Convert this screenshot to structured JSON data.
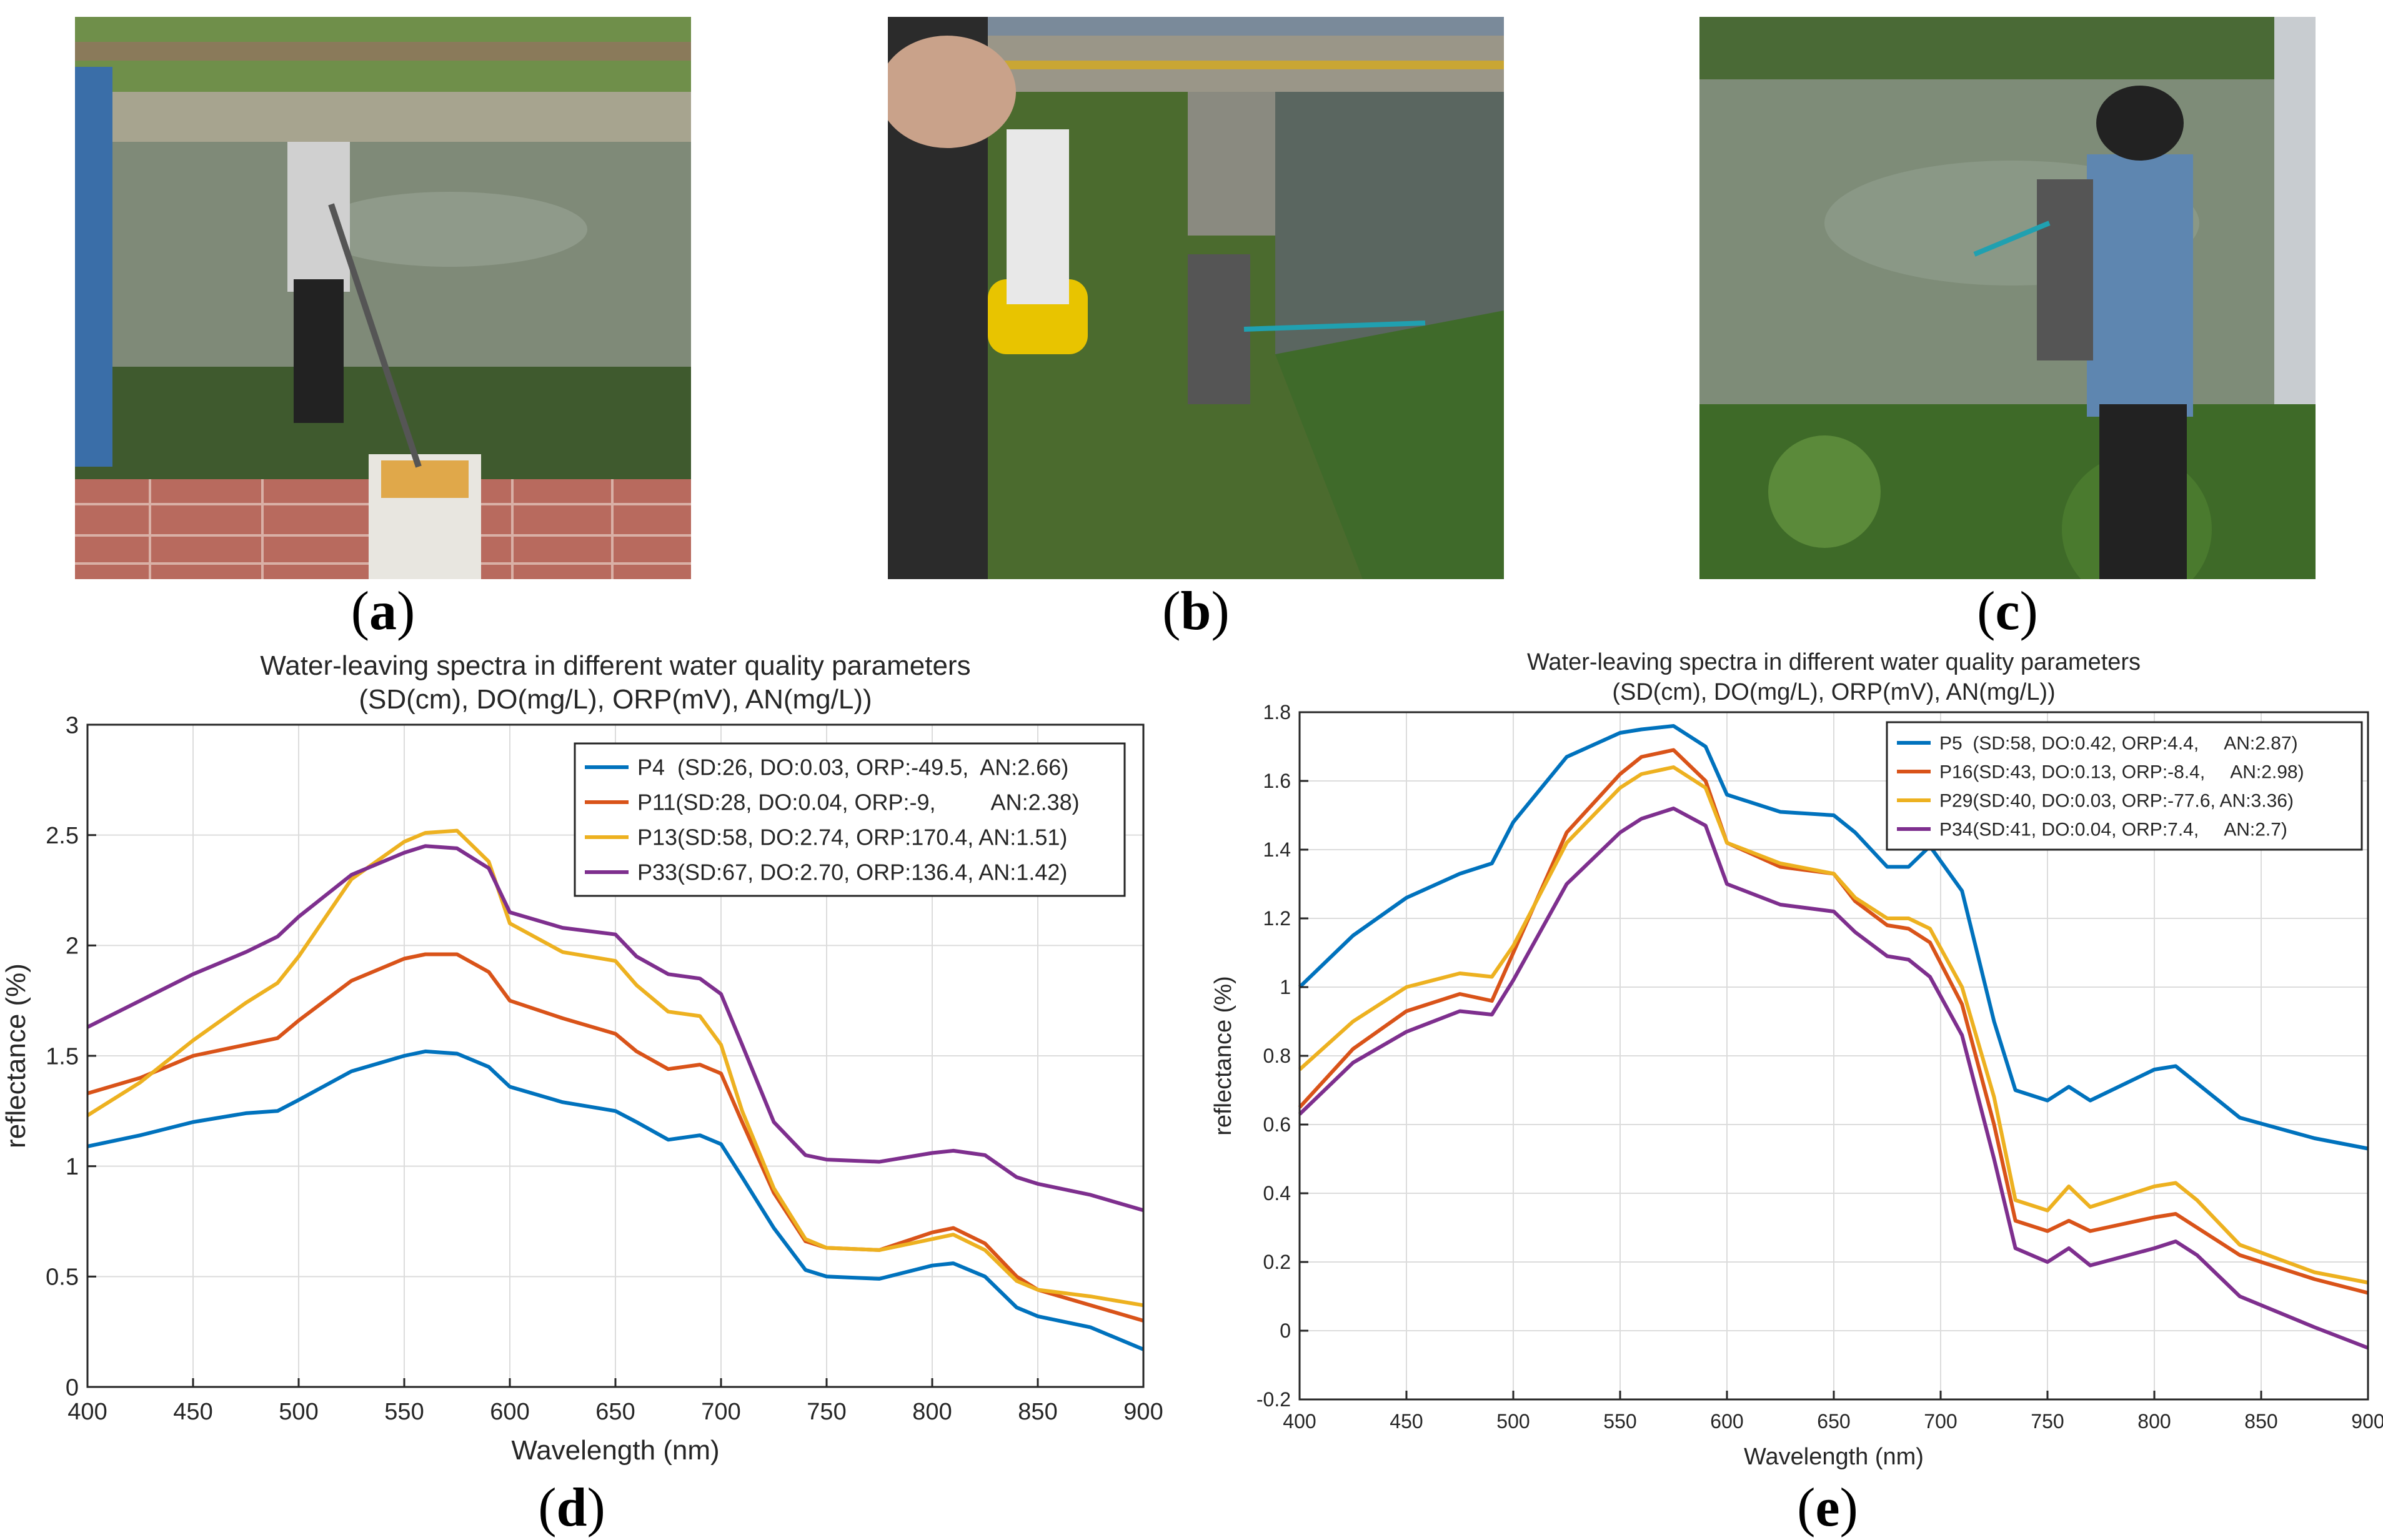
{
  "photos": [
    {
      "label": "a",
      "description_name": "photo-field-measurement-a"
    },
    {
      "label": "b",
      "description_name": "photo-field-measurement-b"
    },
    {
      "label": "c",
      "description_name": "photo-field-measurement-c"
    }
  ],
  "chart_labels": [
    "d",
    "e"
  ],
  "colors": {
    "blue": "#0072bd",
    "orange": "#d95319",
    "yellow": "#edb120",
    "purple": "#7e2f8e",
    "grid": "#dcdcdc",
    "axis": "#262626"
  },
  "chart_data": [
    {
      "type": "line",
      "title": "Water-leaving spectra in different water quality parameters",
      "subtitle": "(SD(cm), DO(mg/L), ORP(mV), AN(mg/L))",
      "xlabel": "Wavelength (nm)",
      "ylabel": "reflectance (%)",
      "xlim": [
        400,
        900
      ],
      "ylim": [
        0,
        3
      ],
      "xticks": [
        400,
        450,
        500,
        550,
        600,
        650,
        700,
        750,
        800,
        850,
        900
      ],
      "yticks": [
        0,
        0.5,
        1,
        1.5,
        2,
        2.5,
        3
      ],
      "ytick_labels": [
        "0",
        "0.5",
        "1",
        "1.5",
        "2",
        "2.5",
        "3"
      ],
      "grid": true,
      "legend_position": "top-right",
      "x": [
        400,
        425,
        450,
        475,
        490,
        500,
        525,
        550,
        560,
        575,
        590,
        600,
        625,
        650,
        660,
        675,
        690,
        700,
        710,
        725,
        740,
        750,
        775,
        800,
        810,
        825,
        840,
        850,
        875,
        900
      ],
      "series": [
        {
          "name": "P4  (SD:26, DO:0.03, ORP:-49.5,  AN:2.66)",
          "color": "#0072bd",
          "values": [
            1.09,
            1.14,
            1.2,
            1.24,
            1.25,
            1.3,
            1.43,
            1.5,
            1.52,
            1.51,
            1.45,
            1.36,
            1.29,
            1.25,
            1.2,
            1.12,
            1.14,
            1.1,
            0.95,
            0.72,
            0.53,
            0.5,
            0.49,
            0.55,
            0.56,
            0.5,
            0.36,
            0.32,
            0.27,
            0.17
          ]
        },
        {
          "name": "P11(SD:28, DO:0.04, ORP:-9,         AN:2.38)",
          "color": "#d95319",
          "values": [
            1.33,
            1.4,
            1.5,
            1.55,
            1.58,
            1.66,
            1.84,
            1.94,
            1.96,
            1.96,
            1.88,
            1.75,
            1.67,
            1.6,
            1.52,
            1.44,
            1.46,
            1.42,
            1.2,
            0.88,
            0.66,
            0.63,
            0.62,
            0.7,
            0.72,
            0.65,
            0.5,
            0.44,
            0.37,
            0.3
          ]
        },
        {
          "name": "P13(SD:58, DO:2.74, ORP:170.4, AN:1.51)",
          "color": "#edb120",
          "values": [
            1.23,
            1.38,
            1.57,
            1.74,
            1.83,
            1.95,
            2.3,
            2.47,
            2.51,
            2.52,
            2.38,
            2.1,
            1.97,
            1.93,
            1.82,
            1.7,
            1.68,
            1.55,
            1.25,
            0.9,
            0.67,
            0.63,
            0.62,
            0.67,
            0.69,
            0.62,
            0.48,
            0.44,
            0.41,
            0.37
          ]
        },
        {
          "name": "P33(SD:67, DO:2.70, ORP:136.4, AN:1.42)",
          "color": "#7e2f8e",
          "values": [
            1.63,
            1.75,
            1.87,
            1.97,
            2.04,
            2.13,
            2.32,
            2.42,
            2.45,
            2.44,
            2.35,
            2.15,
            2.08,
            2.05,
            1.95,
            1.87,
            1.85,
            1.78,
            1.55,
            1.2,
            1.05,
            1.03,
            1.02,
            1.06,
            1.07,
            1.05,
            0.95,
            0.92,
            0.87,
            0.8
          ]
        }
      ]
    },
    {
      "type": "line",
      "title": "Water-leaving spectra in different water quality parameters",
      "subtitle": "(SD(cm), DO(mg/L), ORP(mV), AN(mg/L))",
      "xlabel": "Wavelength (nm)",
      "ylabel": "reflectance (%)",
      "xlim": [
        400,
        900
      ],
      "ylim": [
        -0.2,
        1.8
      ],
      "xticks": [
        400,
        450,
        500,
        550,
        600,
        650,
        700,
        750,
        800,
        850,
        900
      ],
      "yticks": [
        -0.2,
        0,
        0.2,
        0.4,
        0.6,
        0.8,
        1,
        1.2,
        1.4,
        1.6,
        1.8
      ],
      "ytick_labels": [
        "-0.2",
        "0",
        "0.2",
        "0.4",
        "0.6",
        "0.8",
        "1",
        "1.2",
        "1.4",
        "1.6",
        "1.8"
      ],
      "grid": true,
      "legend_position": "top-right",
      "x": [
        400,
        425,
        450,
        475,
        490,
        500,
        525,
        550,
        560,
        575,
        590,
        600,
        625,
        650,
        660,
        675,
        685,
        695,
        710,
        725,
        735,
        750,
        760,
        770,
        800,
        810,
        820,
        840,
        875,
        900
      ],
      "series": [
        {
          "name": "P5  (SD:58, DO:0.42, ORP:4.4,     AN:2.87)",
          "color": "#0072bd",
          "values": [
            1.0,
            1.15,
            1.26,
            1.33,
            1.36,
            1.48,
            1.67,
            1.74,
            1.75,
            1.76,
            1.7,
            1.56,
            1.51,
            1.5,
            1.45,
            1.35,
            1.35,
            1.41,
            1.28,
            0.9,
            0.7,
            0.67,
            0.71,
            0.67,
            0.76,
            0.77,
            0.72,
            0.62,
            0.56,
            0.53
          ]
        },
        {
          "name": "P16(SD:43, DO:0.13, ORP:-8.4,     AN:2.98)",
          "color": "#d95319",
          "values": [
            0.65,
            0.82,
            0.93,
            0.98,
            0.96,
            1.1,
            1.45,
            1.62,
            1.67,
            1.69,
            1.6,
            1.42,
            1.35,
            1.33,
            1.25,
            1.18,
            1.17,
            1.13,
            0.95,
            0.6,
            0.32,
            0.29,
            0.32,
            0.29,
            0.33,
            0.34,
            0.3,
            0.22,
            0.15,
            0.11
          ]
        },
        {
          "name": "P29(SD:40, DO:0.03, ORP:-77.6, AN:3.36)",
          "color": "#edb120",
          "values": [
            0.76,
            0.9,
            1.0,
            1.04,
            1.03,
            1.12,
            1.42,
            1.58,
            1.62,
            1.64,
            1.58,
            1.42,
            1.36,
            1.33,
            1.26,
            1.2,
            1.2,
            1.17,
            1.0,
            0.68,
            0.38,
            0.35,
            0.42,
            0.36,
            0.42,
            0.43,
            0.38,
            0.25,
            0.17,
            0.14
          ]
        },
        {
          "name": "P34(SD:41, DO:0.04, ORP:7.4,     AN:2.7)",
          "color": "#7e2f8e",
          "values": [
            0.63,
            0.78,
            0.87,
            0.93,
            0.92,
            1.02,
            1.3,
            1.45,
            1.49,
            1.52,
            1.47,
            1.3,
            1.24,
            1.22,
            1.16,
            1.09,
            1.08,
            1.03,
            0.86,
            0.5,
            0.24,
            0.2,
            0.24,
            0.19,
            0.24,
            0.26,
            0.22,
            0.1,
            0.01,
            -0.05
          ]
        }
      ]
    }
  ]
}
